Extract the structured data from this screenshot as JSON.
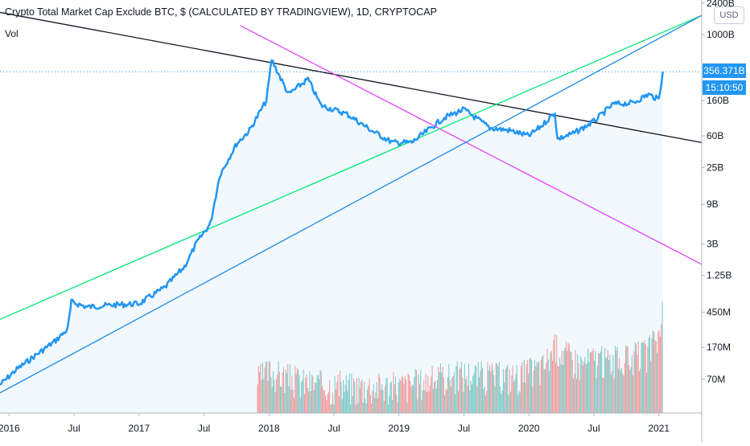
{
  "header": {
    "title": "Crypto Total Market Cap Exclude BTC, $ (CALCULATED BY TRADINGVIEW), 1D, CRYPTOCAP",
    "vol_label": "Vol",
    "currency": "USD"
  },
  "badges": {
    "last_value": "356.371B",
    "countdown": "15:10:50"
  },
  "chart_data": {
    "type": "area",
    "yscale": "log",
    "x_ticks": [
      "2016",
      "Jul",
      "2017",
      "Jul",
      "2018",
      "Jul",
      "2019",
      "Jul",
      "2020",
      "Jul",
      "2021"
    ],
    "x_tick_dates": [
      2016.0,
      2016.5,
      2017.0,
      2017.5,
      2018.0,
      2018.5,
      2019.0,
      2019.5,
      2020.0,
      2020.5,
      2021.0
    ],
    "y_ticks": [
      "2400B",
      "1000B",
      "160B",
      "60B",
      "25B",
      "9B",
      "3B",
      "1.25B",
      "450M",
      "170M",
      "70M"
    ],
    "y_tick_values": [
      2400000000000.0,
      1000000000000.0,
      160000000000.0,
      60000000000.0,
      25000000000.0,
      9000000000.0,
      3000000000.0,
      1250000000.0,
      450000000.0,
      170000000.0,
      70000000.0
    ],
    "xlim": [
      2015.93,
      2021.33
    ],
    "series": [
      {
        "type": "line",
        "color": "#2196f3",
        "x": [
          2015.93,
          2016.05,
          2016.2,
          2016.35,
          2016.45,
          2016.48,
          2016.6,
          2016.8,
          2017.0,
          2017.2,
          2017.35,
          2017.45,
          2017.55,
          2017.62,
          2017.75,
          2017.85,
          2017.98,
          2018.02,
          2018.15,
          2018.3,
          2018.4,
          2018.6,
          2018.8,
          2018.95,
          2019.1,
          2019.35,
          2019.5,
          2019.7,
          2019.85,
          2020.0,
          2020.1,
          2020.2,
          2020.22,
          2020.35,
          2020.5,
          2020.65,
          2020.8,
          2020.92,
          2021.0,
          2021.03
        ],
        "y": [
          60000000.0,
          90000000.0,
          135000000.0,
          200000000.0,
          280000000.0,
          600000000.0,
          520000000.0,
          550000000.0,
          570000000.0,
          900000000.0,
          1600000000.0,
          3200000000.0,
          5300000000.0,
          20000000000.0,
          48000000000.0,
          70000000000.0,
          160000000000.0,
          500000000000.0,
          190000000000.0,
          290000000000.0,
          140000000000.0,
          110000000000.0,
          68000000000.0,
          50000000000.0,
          50000000000.0,
          100000000000.0,
          125000000000.0,
          75000000000.0,
          70000000000.0,
          60000000000.0,
          80000000000.0,
          115000000000.0,
          55000000000.0,
          65000000000.0,
          90000000000.0,
          145000000000.0,
          150000000000.0,
          190000000000.0,
          165000000000.0,
          356000000000.0
        ]
      }
    ],
    "trendlines": [
      {
        "color": "#131722",
        "from": [
          2015.93,
          1850000000000.0
        ],
        "to": [
          2021.33,
          50000000000.0
        ]
      },
      {
        "color": "#e040fb",
        "from": [
          2017.78,
          1280000000000.0
        ],
        "to": [
          2021.33,
          1700000000.0
        ]
      },
      {
        "color": "#00e676",
        "from": [
          2015.93,
          370000000.0
        ],
        "to": [
          2021.33,
          1700000000000.0
        ]
      },
      {
        "color": "#1e88e5",
        "from": [
          2015.93,
          48000000.0
        ],
        "to": [
          2021.33,
          1700000000000.0
        ]
      }
    ],
    "volume": {
      "colors": {
        "up": "#26a69a",
        "down": "#ef5350"
      },
      "x": [
        2017.9,
        2018.0,
        2018.1,
        2018.3,
        2018.6,
        2019.0,
        2019.3,
        2019.5,
        2019.7,
        2019.9,
        2020.1,
        2020.2,
        2020.4,
        2020.5,
        2020.6,
        2020.75,
        2020.9,
        2021.0,
        2021.03
      ],
      "y": [
        70000000.0,
        90000000.0,
        80000000.0,
        65000000.0,
        60000000.0,
        60000000.0,
        75000000.0,
        85000000.0,
        80000000.0,
        80000000.0,
        100000000.0,
        180000000.0,
        110000000.0,
        130000000.0,
        120000000.0,
        125000000.0,
        150000000.0,
        240000000.0,
        480000000.0
      ]
    }
  }
}
